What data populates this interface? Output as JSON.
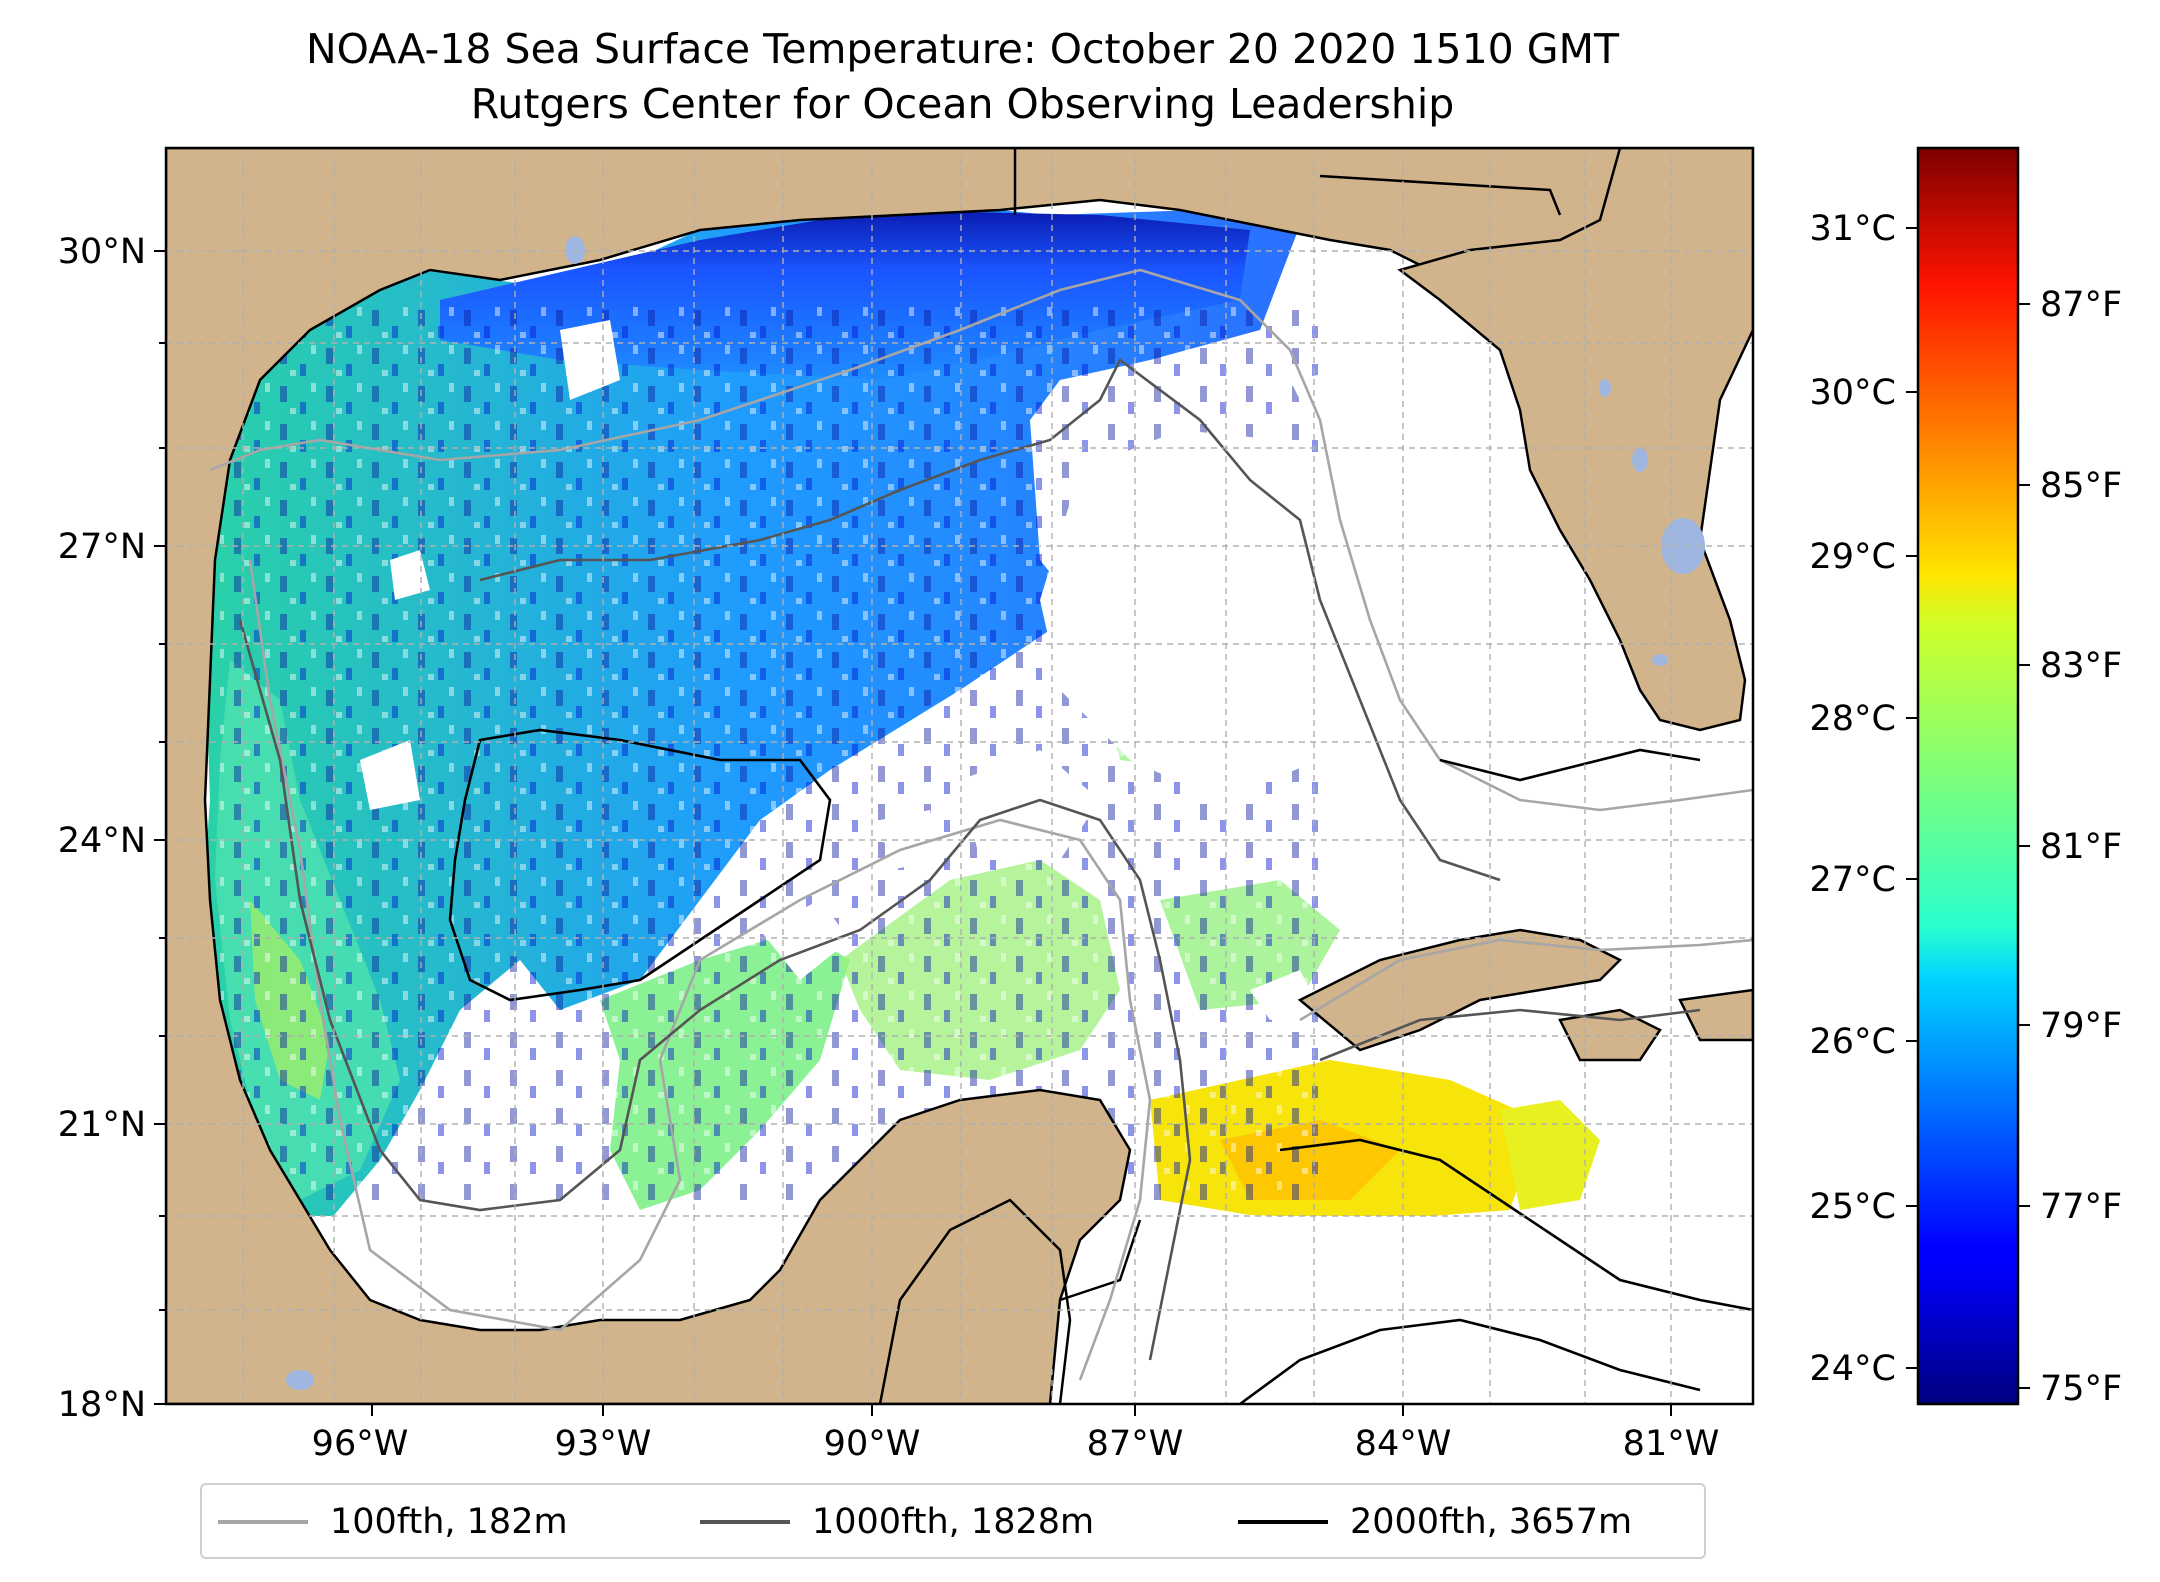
{
  "title": "NOAA-18 Sea Surface Temperature: October 20 2020 1510 GMT",
  "subtitle": "Rutgers Center for Ocean Observing Leadership",
  "lat_ticks": [
    "30°N",
    "27°N",
    "24°N",
    "21°N",
    "18°N"
  ],
  "lon_ticks": [
    "96°W",
    "93°W",
    "90°W",
    "87°W",
    "84°W",
    "81°W"
  ],
  "colorbar": {
    "celsius_ticks": [
      "31°C",
      "30°C",
      "29°C",
      "28°C",
      "27°C",
      "26°C",
      "25°C",
      "24°C"
    ],
    "fahrenheit_ticks": [
      "87°F",
      "85°F",
      "83°F",
      "81°F",
      "79°F",
      "77°F",
      "75°F"
    ],
    "range_f": [
      74.8,
      89.1
    ],
    "colormap": "jet"
  },
  "legend": [
    {
      "label": "100fth, 182m",
      "color": "#a6a6a6"
    },
    {
      "label": "1000fth, 1828m",
      "color": "#555555"
    },
    {
      "label": "2000fth, 3657m",
      "color": "#000000"
    }
  ],
  "colors": {
    "land": "#d2b48c",
    "water_bodies": "#9fb6e0",
    "grid": "#b0b0b0"
  }
}
